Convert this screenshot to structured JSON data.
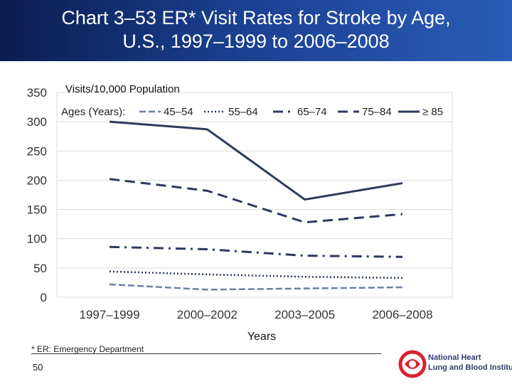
{
  "slide": {
    "title_line1": "Chart 3–53 ER* Visit Rates for Stroke by Age,",
    "title_line2": "U.S., 1997–1999 to 2006–2008",
    "footnote": "* ER: Emergency Department",
    "page_number": "50",
    "logo_line1": "National Heart",
    "logo_line2": "Lung and Blood Institute",
    "colors": {
      "title_bar": "#1a3f8f",
      "logo_red": "#d9232e",
      "logo_navy": "#2e3c6e"
    }
  },
  "chart_data": {
    "type": "line",
    "title": "",
    "ylabel": "Visits/10,000 Population",
    "xlabel": "Years",
    "legend_title": "Ages (Years):",
    "legend_position": "top",
    "categories": [
      "1997–1999",
      "2000–2002",
      "2003–2005",
      "2006–2008"
    ],
    "ylim": [
      0,
      350
    ],
    "yticks": [
      0,
      50,
      100,
      150,
      200,
      250,
      300,
      350
    ],
    "grid": true,
    "series": [
      {
        "name": "45–54",
        "values": [
          22,
          13,
          15,
          17
        ],
        "dash": "long-dash",
        "color": "#6b7fa6"
      },
      {
        "name": "55–64",
        "values": [
          44,
          39,
          35,
          33
        ],
        "dash": "dotted",
        "color": "#2c3a5e"
      },
      {
        "name": "65–74",
        "values": [
          86,
          82,
          71,
          69
        ],
        "dash": "dash-dot",
        "color": "#2c3a5e"
      },
      {
        "name": "75–84",
        "values": [
          202,
          182,
          128,
          142
        ],
        "dash": "dashed",
        "color": "#2c3a5e"
      },
      {
        "name": "≥ 85",
        "values": [
          300,
          287,
          167,
          195
        ],
        "dash": "solid",
        "color": "#2c3a5e"
      }
    ]
  }
}
